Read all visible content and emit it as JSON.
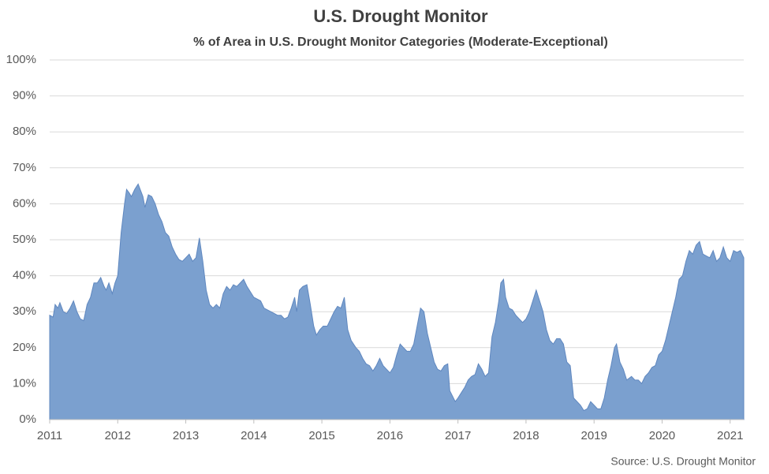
{
  "chart_data": {
    "type": "area",
    "title": "U.S. Drought Monitor",
    "subtitle": "% of Area in U.S. Drought Monitor Categories (Moderate-Exceptional)",
    "source": "Source: U.S. Drought Monitor",
    "color": "#7ba0cf",
    "grid": true,
    "xlim": [
      2011,
      2021.2
    ],
    "xticks": [
      2011,
      2012,
      2013,
      2014,
      2015,
      2016,
      2017,
      2018,
      2019,
      2020,
      2021
    ],
    "ylim": [
      0,
      100
    ],
    "yticks": [
      {
        "value": 0,
        "label": "0%"
      },
      {
        "value": 10,
        "label": "10%"
      },
      {
        "value": 20,
        "label": "20%"
      },
      {
        "value": 30,
        "label": "30%"
      },
      {
        "value": 40,
        "label": "40%"
      },
      {
        "value": 50,
        "label": "50%"
      },
      {
        "value": 60,
        "label": "60%"
      },
      {
        "value": 70,
        "label": "70%"
      },
      {
        "value": 80,
        "label": "80%"
      },
      {
        "value": 90,
        "label": "90%"
      },
      {
        "value": 100,
        "label": "100%"
      }
    ],
    "x": [
      2011.0,
      2011.05,
      2011.08,
      2011.12,
      2011.15,
      2011.2,
      2011.25,
      2011.3,
      2011.35,
      2011.4,
      2011.45,
      2011.5,
      2011.55,
      2011.6,
      2011.65,
      2011.7,
      2011.75,
      2011.8,
      2011.83,
      2011.87,
      2011.92,
      2011.96,
      2012.0,
      2012.05,
      2012.1,
      2012.13,
      2012.17,
      2012.2,
      2012.25,
      2012.3,
      2012.33,
      2012.37,
      2012.4,
      2012.45,
      2012.5,
      2012.55,
      2012.6,
      2012.65,
      2012.7,
      2012.75,
      2012.8,
      2012.85,
      2012.9,
      2012.95,
      2013.0,
      2013.05,
      2013.1,
      2013.15,
      2013.2,
      2013.25,
      2013.3,
      2013.35,
      2013.4,
      2013.45,
      2013.5,
      2013.55,
      2013.6,
      2013.65,
      2013.7,
      2013.75,
      2013.8,
      2013.85,
      2013.9,
      2013.95,
      2014.0,
      2014.05,
      2014.1,
      2014.15,
      2014.2,
      2014.25,
      2014.3,
      2014.35,
      2014.4,
      2014.45,
      2014.5,
      2014.55,
      2014.6,
      2014.63,
      2014.67,
      2014.72,
      2014.78,
      2014.83,
      2014.88,
      2014.92,
      2014.97,
      2015.02,
      2015.08,
      2015.13,
      2015.18,
      2015.23,
      2015.28,
      2015.33,
      2015.38,
      2015.43,
      2015.5,
      2015.55,
      2015.6,
      2015.65,
      2015.7,
      2015.75,
      2015.8,
      2015.85,
      2015.9,
      2015.95,
      2016.0,
      2016.05,
      2016.1,
      2016.15,
      2016.2,
      2016.25,
      2016.3,
      2016.35,
      2016.4,
      2016.45,
      2016.5,
      2016.55,
      2016.6,
      2016.65,
      2016.7,
      2016.75,
      2016.8,
      2016.85,
      2016.88,
      2016.92,
      2016.96,
      2017.0,
      2017.05,
      2017.1,
      2017.15,
      2017.2,
      2017.25,
      2017.3,
      2017.35,
      2017.4,
      2017.45,
      2017.5,
      2017.55,
      2017.6,
      2017.63,
      2017.67,
      2017.7,
      2017.75,
      2017.8,
      2017.85,
      2017.9,
      2017.95,
      2018.0,
      2018.05,
      2018.1,
      2018.15,
      2018.2,
      2018.25,
      2018.3,
      2018.35,
      2018.4,
      2018.45,
      2018.5,
      2018.55,
      2018.6,
      2018.65,
      2018.7,
      2018.75,
      2018.8,
      2018.85,
      2018.9,
      2018.95,
      2019.0,
      2019.05,
      2019.1,
      2019.15,
      2019.2,
      2019.25,
      2019.3,
      2019.33,
      2019.38,
      2019.43,
      2019.48,
      2019.55,
      2019.6,
      2019.65,
      2019.7,
      2019.75,
      2019.8,
      2019.85,
      2019.9,
      2019.95,
      2020.0,
      2020.05,
      2020.1,
      2020.15,
      2020.2,
      2020.25,
      2020.3,
      2020.35,
      2020.4,
      2020.45,
      2020.5,
      2020.55,
      2020.6,
      2020.65,
      2020.7,
      2020.75,
      2020.8,
      2020.85,
      2020.9,
      2020.95,
      2021.0,
      2021.05,
      2021.1,
      2021.15,
      2021.2
    ],
    "values": [
      29,
      28.5,
      32,
      31,
      32.5,
      30,
      29.5,
      31,
      33,
      30,
      28,
      27.5,
      32,
      34,
      38,
      38,
      39.5,
      37,
      36,
      38,
      35,
      38,
      40,
      52,
      60,
      64,
      63,
      62,
      64,
      65.5,
      64,
      62,
      59,
      62.5,
      62,
      60,
      57,
      55,
      52,
      51,
      48,
      46,
      44.5,
      44,
      45,
      46,
      44,
      45,
      50.5,
      44,
      36,
      32,
      31,
      32,
      31,
      35,
      37,
      36,
      37.5,
      37,
      38,
      39,
      37,
      35.5,
      34,
      33.5,
      33,
      31,
      30.5,
      30,
      29.5,
      29,
      29,
      28,
      28.5,
      31,
      34,
      30,
      36,
      37,
      37.5,
      32,
      26,
      23.5,
      25,
      26,
      26,
      28,
      30,
      31.5,
      31,
      34,
      25,
      22,
      20,
      19,
      17,
      15.5,
      15,
      13.5,
      15,
      17,
      15,
      14,
      13,
      14.5,
      18,
      21,
      20,
      19,
      19,
      21,
      26,
      31,
      30,
      24,
      20,
      16,
      14,
      13.5,
      15,
      15.5,
      8,
      6.5,
      5,
      6,
      7.5,
      9,
      11,
      12,
      12.5,
      15.5,
      14,
      12,
      13,
      23,
      27,
      33,
      38,
      39,
      34,
      31,
      30.5,
      29,
      28,
      27,
      28,
      30,
      33,
      36,
      33,
      30,
      25,
      22,
      21,
      22.5,
      22.5,
      21,
      16,
      15,
      6,
      5,
      4,
      2.5,
      3,
      5,
      4,
      3,
      3,
      6,
      11,
      15,
      20,
      21,
      16,
      14,
      11,
      12,
      11,
      11,
      10,
      12,
      13,
      14.5,
      15,
      18,
      19,
      22,
      26,
      30,
      34,
      39,
      40,
      44,
      47,
      46,
      48.5,
      49.5,
      46,
      45.5,
      45,
      47,
      44,
      45,
      48,
      45,
      44,
      47,
      46.5,
      47,
      45
    ]
  }
}
